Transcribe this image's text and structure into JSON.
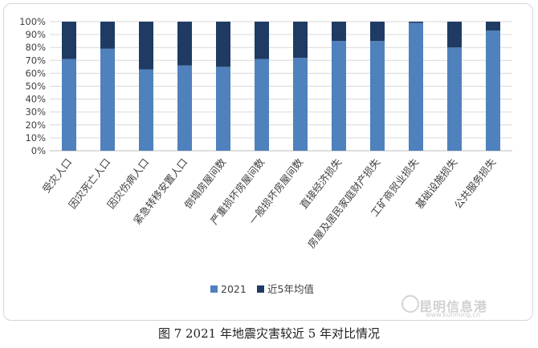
{
  "colors": {
    "series_2021": "#4f81bd",
    "series_avg": "#1f3b63",
    "grid": "#d9d9d9",
    "axis": "#404040"
  },
  "caption": "图 7 2021 年地震灾害较近 5 年对比情况",
  "watermark": {
    "name": "昆明信息港",
    "url": "www.kunming.cn",
    "icon": "watermark-logo-icon"
  },
  "chart_data": {
    "type": "bar",
    "stacked": true,
    "categories": [
      "受灾人口",
      "因灾死亡人口",
      "因灾伤病人口",
      "紧急转移安置人口",
      "倒塌房屋间数",
      "严重损坏房屋间数",
      "一般损坏房屋间数",
      "直接经济损失",
      "房屋及居民家庭财产损失",
      "工矿商贸业损失",
      "基础设施损失",
      "公共服务损失"
    ],
    "series": [
      {
        "name": "2021",
        "values": [
          71,
          79,
          63,
          66,
          65,
          71,
          72,
          85,
          85,
          99,
          80,
          93
        ]
      },
      {
        "name": "近5年均值",
        "values": [
          29,
          21,
          37,
          34,
          35,
          29,
          28,
          15,
          15,
          1,
          20,
          7
        ]
      }
    ],
    "ylim": [
      0,
      100
    ],
    "y_ticks": [
      "0%",
      "10%",
      "20%",
      "30%",
      "40%",
      "50%",
      "60%",
      "70%",
      "80%",
      "90%",
      "100%"
    ],
    "grid": true,
    "legend_position": "bottom"
  }
}
